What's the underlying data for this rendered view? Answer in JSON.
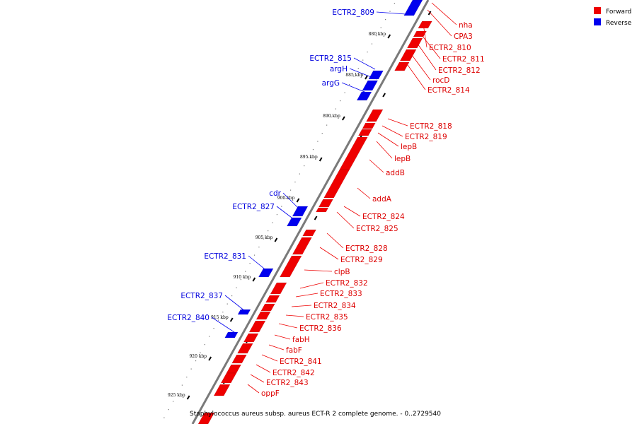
{
  "legend": {
    "items": [
      {
        "label": "Forward",
        "color": "#ee0000"
      },
      {
        "label": "Reverse",
        "color": "#0000ee"
      }
    ]
  },
  "caption": "Staphylococcus aureus subsp. aureus ECT-R 2 complete genome. - 0..2729540",
  "colors": {
    "forward": "#ee0000",
    "reverse": "#0000ee",
    "backbone": "#888888"
  },
  "ticks": [
    {
      "label": "880 kbp"
    },
    {
      "label": "885 kbp"
    },
    {
      "label": "890 kbp"
    },
    {
      "label": "895 kbp"
    },
    {
      "label": "900 kbp"
    },
    {
      "label": "905 kbp"
    },
    {
      "label": "910 kbp"
    },
    {
      "label": "915 kbp"
    },
    {
      "label": "920 kbp"
    },
    {
      "label": "925 kbp"
    }
  ],
  "forward_genes": [
    {
      "name": "nha"
    },
    {
      "name": "CPA3"
    },
    {
      "name": "ECTR2_810"
    },
    {
      "name": "ECTR2_811"
    },
    {
      "name": "ECTR2_812"
    },
    {
      "name": "rocD"
    },
    {
      "name": "ECTR2_814"
    },
    {
      "name": "ECTR2_818"
    },
    {
      "name": "ECTR2_819"
    },
    {
      "name": "lepB"
    },
    {
      "name": "lepB"
    },
    {
      "name": "addB"
    },
    {
      "name": "addA"
    },
    {
      "name": "ECTR2_824"
    },
    {
      "name": "ECTR2_825"
    },
    {
      "name": "ECTR2_828"
    },
    {
      "name": "ECTR2_829"
    },
    {
      "name": "clpB"
    },
    {
      "name": "ECTR2_832"
    },
    {
      "name": "ECTR2_833"
    },
    {
      "name": "ECTR2_834"
    },
    {
      "name": "ECTR2_835"
    },
    {
      "name": "ECTR2_836"
    },
    {
      "name": "fabH"
    },
    {
      "name": "fabF"
    },
    {
      "name": "ECTR2_841"
    },
    {
      "name": "ECTR2_842"
    },
    {
      "name": "ECTR2_843"
    },
    {
      "name": "oppF"
    }
  ],
  "reverse_genes": [
    {
      "name": "ECTR2_809"
    },
    {
      "name": "ECTR2_815"
    },
    {
      "name": "argH"
    },
    {
      "name": "argG"
    },
    {
      "name": "cdr"
    },
    {
      "name": "ECTR2_827"
    },
    {
      "name": "ECTR2_831"
    },
    {
      "name": "ECTR2_837"
    },
    {
      "name": "ECTR2_840"
    }
  ]
}
